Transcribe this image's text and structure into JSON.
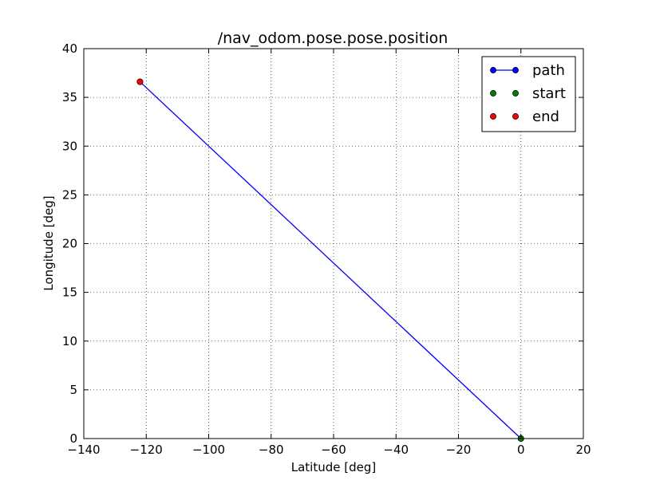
{
  "chart_data": {
    "type": "line",
    "title": "/nav_odom.pose.pose.position",
    "xlabel": "Latitude [deg]",
    "ylabel": "Longitude [deg]",
    "xlim": [
      -140,
      20
    ],
    "ylim": [
      0,
      40
    ],
    "xticks": [
      "−140",
      "−120",
      "−100",
      "−80",
      "−60",
      "−40",
      "−20",
      "0",
      "20"
    ],
    "xtick_values": [
      -140,
      -120,
      -100,
      -80,
      -60,
      -40,
      -20,
      0,
      20
    ],
    "yticks": [
      "0",
      "5",
      "10",
      "15",
      "20",
      "25",
      "30",
      "35",
      "40"
    ],
    "ytick_values": [
      0,
      5,
      10,
      15,
      20,
      25,
      30,
      35,
      40
    ],
    "grid": true,
    "legend_position": "top-right",
    "series": [
      {
        "name": "path",
        "color": "#0000ff",
        "style": "line-marker",
        "points": [
          [
            0,
            0
          ],
          [
            -122.0,
            36.6
          ]
        ]
      },
      {
        "name": "start",
        "color": "#008000",
        "style": "marker",
        "points": [
          [
            0,
            0
          ]
        ]
      },
      {
        "name": "end",
        "color": "#ff0000",
        "style": "marker",
        "points": [
          [
            -122.0,
            36.6
          ]
        ]
      }
    ]
  }
}
